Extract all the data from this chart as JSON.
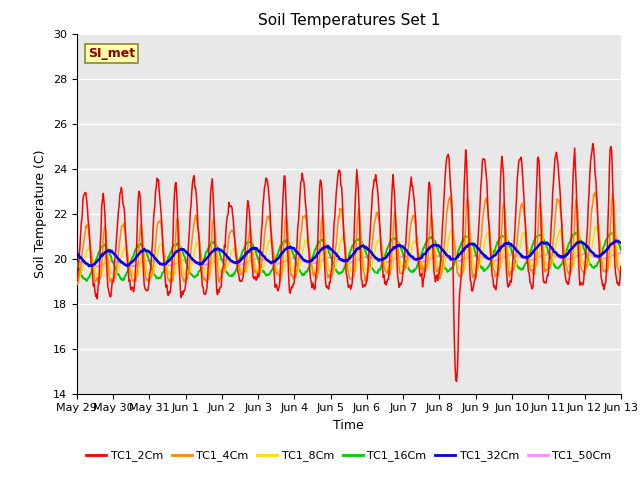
{
  "title": "Soil Temperatures Set 1",
  "xlabel": "Time",
  "ylabel": "Soil Temperature (C)",
  "ylim": [
    14,
    30
  ],
  "yticks": [
    14,
    16,
    18,
    20,
    22,
    24,
    26,
    28,
    30
  ],
  "annotation_text": "SI_met",
  "series_names": [
    "TC1_2Cm",
    "TC1_4Cm",
    "TC1_8Cm",
    "TC1_16Cm",
    "TC1_32Cm",
    "TC1_50Cm"
  ],
  "series_colors": [
    "#ff0000",
    "#ff8800",
    "#ffdd00",
    "#00cc00",
    "#0000ee",
    "#ff88ff"
  ],
  "n_days": 15,
  "points_per_day": 48,
  "base_temp": 19.5,
  "background_color": "#e8e8e8",
  "xtick_labels": [
    "May 29",
    "May 30",
    "May 31",
    "Jun 1",
    "Jun 2",
    "Jun 3",
    "Jun 4",
    "Jun 5",
    "Jun 6",
    "Jun 7",
    "Jun 8",
    "Jun 9",
    "Jun 10",
    "Jun 11",
    "Jun 12",
    "Jun 13"
  ],
  "xtick_positions": [
    0,
    1,
    2,
    3,
    4,
    5,
    6,
    7,
    8,
    9,
    10,
    11,
    12,
    13,
    14,
    15
  ],
  "title_fontsize": 11,
  "tick_fontsize": 8
}
